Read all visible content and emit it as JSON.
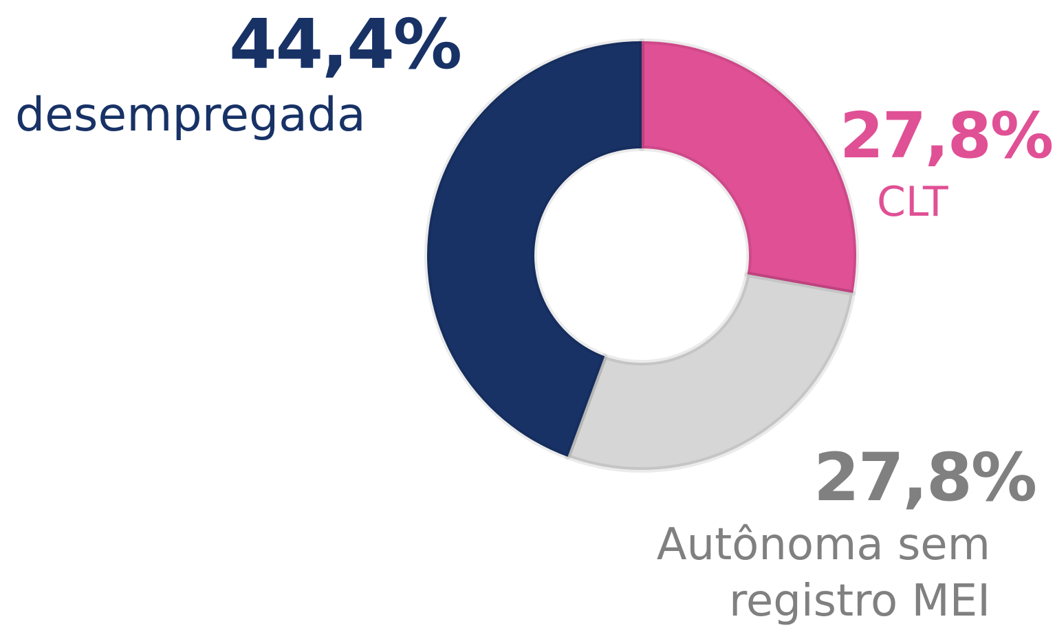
{
  "chart_data": {
    "type": "donut",
    "categories": [
      "CLT",
      "Autônoma sem registro MEI",
      "desempregada"
    ],
    "values": [
      27.8,
      27.8,
      44.4
    ],
    "value_labels": [
      "27,8%",
      "27,8%",
      "44,4%"
    ],
    "colors": [
      "#e05095",
      "#d6d6d6",
      "#183266"
    ],
    "label_colors": [
      "#e05095",
      "#808080",
      "#183266"
    ]
  }
}
